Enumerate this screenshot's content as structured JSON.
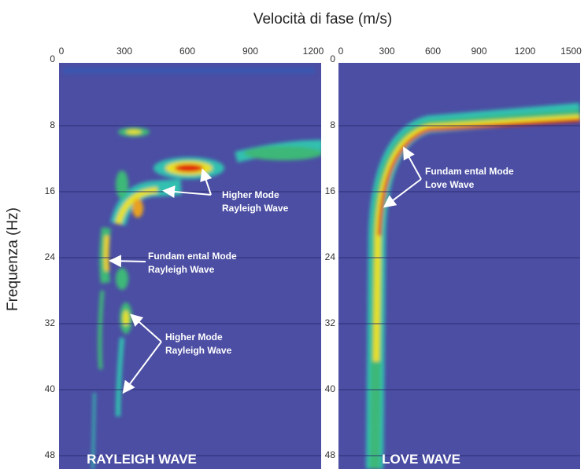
{
  "header": {
    "title": "Velocità di fase (m/s)",
    "y_label": "Frequenza (Hz)"
  },
  "panels": [
    {
      "x_ticks": [
        "0",
        "300",
        "600",
        "900",
        "1200"
      ],
      "y_ticks": [
        "0",
        "8",
        "16",
        "24",
        "32",
        "40",
        "48"
      ],
      "label": "RAYLEIGH WAVE",
      "annotations": [
        [
          "Higher Mode",
          "Rayleigh Wave"
        ],
        [
          "Fundam ental Mode",
          "Rayleigh Wave"
        ],
        [
          "Higher Mode",
          "Rayleigh Wave"
        ]
      ]
    },
    {
      "x_ticks": [
        "0",
        "300",
        "600",
        "900",
        "1200",
        "1500"
      ],
      "y_ticks": [
        "0",
        "8",
        "16",
        "24",
        "32",
        "40",
        "48"
      ],
      "label": "LOVE WAVE",
      "annotations": [
        [
          "Fundam ental Mode",
          "Love Wave"
        ]
      ]
    }
  ]
}
